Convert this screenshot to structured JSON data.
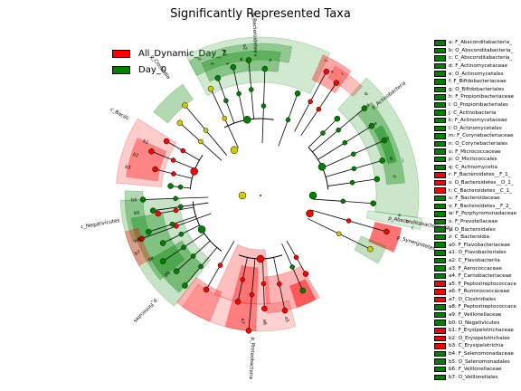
{
  "title": "Significantly Represented Taxa",
  "colors": {
    "group_a": "#ff0000",
    "group_b": "#008000",
    "neutral": "#cccc00"
  },
  "legend": [
    {
      "name": "All_Dynamic_Day_7",
      "color": "#ff0000"
    },
    {
      "name": "Day_0",
      "color": "#008000"
    }
  ],
  "chart_data": {
    "type": "cladogram",
    "title": "Significantly Represented Taxa",
    "groups": [
      "All_Dynamic_Day_7",
      "Day_0"
    ],
    "clades": [
      {
        "label": "p_Bacteroidetes",
        "group": "Day_0"
      },
      {
        "label": "p_Actinobacteria",
        "group": "Day_0"
      },
      {
        "label": "p_Absconditabacteria_SR1",
        "group": "Day_0"
      },
      {
        "label": "p_Synergistetes",
        "group": "All_Dynamic_Day_7"
      },
      {
        "label": "p_Proteobacteria",
        "group": "All_Dynamic_Day_7"
      },
      {
        "label": "p_Firmicutes",
        "group": "All_Dynamic_Day_7"
      },
      {
        "label": "c_Bacilli",
        "group": "Day_0"
      },
      {
        "label": "c_Negativicutes",
        "group": "Day_0"
      },
      {
        "label": "c_Clostridia",
        "group": "All_Dynamic_Day_7"
      }
    ],
    "key": [
      {
        "code": "a",
        "name": "F_Absconditabacteria_",
        "group": "Day_0"
      },
      {
        "code": "b",
        "name": "O_Absconditabacteria_",
        "group": "Day_0"
      },
      {
        "code": "c",
        "name": "C_Absconditabacteria_",
        "group": "Day_0"
      },
      {
        "code": "d",
        "name": "F_Actinomycetaceae",
        "group": "Day_0"
      },
      {
        "code": "e",
        "name": "O_Actinomycetales",
        "group": "Day_0"
      },
      {
        "code": "f",
        "name": "F_Bifidobacteriaceae",
        "group": "Day_0"
      },
      {
        "code": "g",
        "name": "O_Bifidobacteriales",
        "group": "Day_0"
      },
      {
        "code": "h",
        "name": "F_Propionibacteriaceae",
        "group": "Day_0"
      },
      {
        "code": "i",
        "name": "O_Propionibacteriales",
        "group": "Day_0"
      },
      {
        "code": "j",
        "name": "C_Actinobacteria",
        "group": "Day_0"
      },
      {
        "code": "k",
        "name": "F_Actinomycetaceae",
        "group": "Day_0"
      },
      {
        "code": "l",
        "name": "O_Actinomycetales",
        "group": "Day_0"
      },
      {
        "code": "m",
        "name": "F_Corynebacteriaceae",
        "group": "Day_0"
      },
      {
        "code": "n",
        "name": "O_Corynebacteriales",
        "group": "Day_0"
      },
      {
        "code": "o",
        "name": "F_Micrococcaceae",
        "group": "Day_0"
      },
      {
        "code": "p",
        "name": "O_Micrococcales",
        "group": "Day_0"
      },
      {
        "code": "q",
        "name": "C_Actinomycetia",
        "group": "Day_0"
      },
      {
        "code": "r",
        "name": "F_Bacteroidetes__F_1_",
        "group": "All_Dynamic_Day_7"
      },
      {
        "code": "s",
        "name": "O_Bacteroidetes__O_1_",
        "group": "All_Dynamic_Day_7"
      },
      {
        "code": "t",
        "name": "C_Bacteroidetes__C_1_",
        "group": "All_Dynamic_Day_7"
      },
      {
        "code": "u",
        "name": "F_Bacteroidaceae",
        "group": "Day_0"
      },
      {
        "code": "v",
        "name": "F_Bacteroidetes__F_2_",
        "group": "Day_0"
      },
      {
        "code": "w",
        "name": "F_Porphyromonadaceae",
        "group": "Day_0"
      },
      {
        "code": "x",
        "name": "F_Prevotellaceae",
        "group": "Day_0"
      },
      {
        "code": "y",
        "name": "O_Bacteroidales",
        "group": "Day_0"
      },
      {
        "code": "z",
        "name": "C_Bacteroidia",
        "group": "Day_0"
      },
      {
        "code": "a0",
        "name": "F_Flavobacteriaceae",
        "group": "Day_0"
      },
      {
        "code": "a1",
        "name": "O_Flavobacteriales",
        "group": "Day_0"
      },
      {
        "code": "a2",
        "name": "C_Flavobacteriia",
        "group": "Day_0"
      },
      {
        "code": "a3",
        "name": "F_Aerococcaceae",
        "group": "Day_0"
      },
      {
        "code": "a4",
        "name": "F_Carnobacteriaceae",
        "group": "Day_0"
      },
      {
        "code": "a5",
        "name": "F_Peptostreptococcace",
        "group": "All_Dynamic_Day_7"
      },
      {
        "code": "a6",
        "name": "F_Ruminococcaceae",
        "group": "All_Dynamic_Day_7"
      },
      {
        "code": "a7",
        "name": "O_Clostridiales",
        "group": "All_Dynamic_Day_7"
      },
      {
        "code": "a8",
        "name": "F_Peptostreptococcace",
        "group": "Day_0"
      },
      {
        "code": "a9",
        "name": "F_Veillonellaceae",
        "group": "Day_0"
      },
      {
        "code": "b0",
        "name": "O_Negativicutes",
        "group": "Day_0"
      },
      {
        "code": "b1",
        "name": "F_Erysipelotrichaceae",
        "group": "All_Dynamic_Day_7"
      },
      {
        "code": "b2",
        "name": "O_Erysipelotrichales",
        "group": "All_Dynamic_Day_7"
      },
      {
        "code": "b3",
        "name": "C_Erysipelotrichia",
        "group": "All_Dynamic_Day_7"
      },
      {
        "code": "b4",
        "name": "F_Selenomonadaceae",
        "group": "Day_0"
      },
      {
        "code": "b5",
        "name": "O_Selenomonadales",
        "group": "Day_0"
      },
      {
        "code": "b6",
        "name": "F_Veillonellaceae",
        "group": "Day_0"
      },
      {
        "code": "b7",
        "name": "O_Veillonellales",
        "group": "Day_0"
      }
    ]
  }
}
